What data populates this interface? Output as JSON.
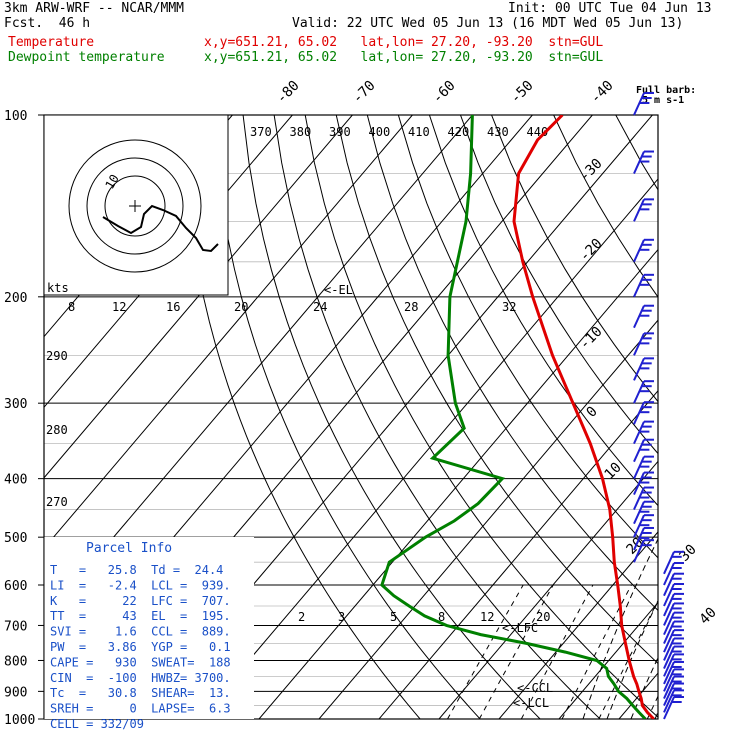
{
  "header": {
    "model": "3km ARW-WRF -- NCAR/MMM",
    "init": "Init: 00 UTC Tue 04 Jun 13",
    "fcst": "Fcst.  46 h",
    "valid": "Valid: 22 UTC Wed 05 Jun 13 (16 MDT Wed 05 Jun 13)",
    "temp_label": "Temperature",
    "dew_label": "Dewpoint temperature",
    "temp_loc": "x,y=651.21, 65.02   lat,lon= 27.20, -93.20  stn=GUL",
    "dew_loc": "x,y=651.21, 65.02   lat,lon= 27.20, -93.20  stn=GUL"
  },
  "colors": {
    "temperature": "#e00000",
    "dewpoint": "#008000",
    "barbs": "#2020d0",
    "grid": "#000000"
  },
  "chart_data": {
    "type": "line",
    "pressure_levels": [
      100,
      200,
      300,
      400,
      500,
      600,
      700,
      800,
      900,
      1000
    ],
    "pressure_labels": [
      "100",
      "200",
      "300",
      "400",
      "500",
      "600",
      "700",
      "800",
      "900",
      "1000"
    ],
    "isotherm_labels_top": [
      "-80",
      "-70",
      "-60",
      "-50",
      "-40"
    ],
    "isotherm_labels_right": [
      "-30",
      "-20",
      "-10",
      "0",
      "10",
      "20",
      "30",
      "40"
    ],
    "theta_e_labels": [
      "370",
      "380",
      "390",
      "400",
      "410",
      "420",
      "430",
      "440"
    ],
    "theta_labels": [
      "290",
      "280",
      "270"
    ],
    "mixing_ratio_labels": [
      "2",
      "3",
      "5",
      "8",
      "12",
      "20"
    ],
    "hodograph_speed_labels": [
      "8",
      "12",
      "16",
      "20",
      "24",
      "28",
      "32"
    ],
    "hodograph_units": "kts",
    "hodograph_ring_label": "10",
    "el_marker": "<-EL",
    "lfc_marker": "<-LFC",
    "ccl_marker": "<-CCL",
    "lcl_marker": "<-LCL",
    "series": [
      {
        "name": "Temperature",
        "points": [
          [
            1000,
            25.8
          ],
          [
            975,
            23.8
          ],
          [
            950,
            22.0
          ],
          [
            925,
            20.8
          ],
          [
            900,
            19.4
          ],
          [
            875,
            18.0
          ],
          [
            850,
            16.4
          ],
          [
            800,
            13.4
          ],
          [
            750,
            10.4
          ],
          [
            700,
            7.2
          ],
          [
            650,
            4.2
          ],
          [
            600,
            0.8
          ],
          [
            550,
            -3.0
          ],
          [
            500,
            -6.8
          ],
          [
            450,
            -11.2
          ],
          [
            400,
            -16.8
          ],
          [
            350,
            -23.8
          ],
          [
            300,
            -32.4
          ],
          [
            250,
            -42.6
          ],
          [
            200,
            -54.2
          ],
          [
            175,
            -60.8
          ],
          [
            150,
            -68.0
          ],
          [
            125,
            -74.0
          ],
          [
            110,
            -75.6
          ],
          [
            100,
            -75.0
          ]
        ]
      },
      {
        "name": "Dewpoint temperature",
        "points": [
          [
            1000,
            24.4
          ],
          [
            975,
            22.4
          ],
          [
            950,
            20.4
          ],
          [
            925,
            18.4
          ],
          [
            900,
            16.0
          ],
          [
            875,
            14.2
          ],
          [
            850,
            12.2
          ],
          [
            825,
            10.8
          ],
          [
            800,
            8.0
          ],
          [
            775,
            1.6
          ],
          [
            750,
            -6.0
          ],
          [
            725,
            -15.0
          ],
          [
            700,
            -22.0
          ],
          [
            675,
            -27.0
          ],
          [
            650,
            -31.0
          ],
          [
            625,
            -35.0
          ],
          [
            600,
            -38.5
          ],
          [
            550,
            -40.5
          ],
          [
            500,
            -38.0
          ],
          [
            470,
            -35.5
          ],
          [
            440,
            -34.0
          ],
          [
            400,
            -33.5
          ],
          [
            370,
            -48.0
          ],
          [
            330,
            -47.0
          ],
          [
            300,
            -52.0
          ],
          [
            250,
            -60.0
          ],
          [
            200,
            -68.0
          ],
          [
            150,
            -76.0
          ],
          [
            125,
            -82.0
          ],
          [
            100,
            -90.0
          ]
        ]
      }
    ]
  },
  "wind_barb": {
    "title": "Full barb:",
    "units": "5 m s-1"
  },
  "parcel_info": {
    "title": "Parcel Info",
    "rows": [
      "T   =   25.8  Td =  24.4",
      "LI  =   -2.4  LCL =  939.",
      "K   =     22  LFC =  707.",
      "TT  =     43  EL  =  195.",
      "SVI =    1.6  CCL =  889.",
      "PW  =   3.86  YGP =   0.1",
      "CAPE =   930  SWEAT=  188",
      "CIN  =  -100  HWBZ= 3700.",
      "Tc  =   30.8  SHEAR=  13.",
      "SREH =     0  LAPSE=  6.3",
      "CELL = 332/09"
    ]
  }
}
